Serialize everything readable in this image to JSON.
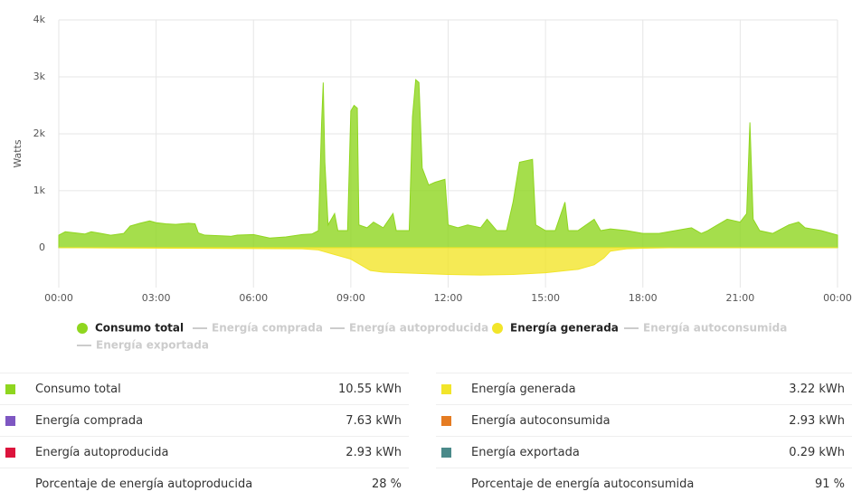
{
  "chart_data": {
    "type": "area",
    "ylabel": "Watts",
    "xlim": [
      0,
      24
    ],
    "xticks": [
      {
        "value": 0,
        "label": "00:00"
      },
      {
        "value": 3,
        "label": "03:00"
      },
      {
        "value": 6,
        "label": "06:00"
      },
      {
        "value": 9,
        "label": "09:00"
      },
      {
        "value": 12,
        "label": "12:00"
      },
      {
        "value": 15,
        "label": "15:00"
      },
      {
        "value": 18,
        "label": "18:00"
      },
      {
        "value": 21,
        "label": "21:00"
      },
      {
        "value": 24,
        "label": "00:00"
      }
    ],
    "ylim": [
      -700,
      4000
    ],
    "yticks": [
      0,
      {
        "value": 1000,
        "label": "1k"
      },
      {
        "value": 2000,
        "label": "2k"
      },
      {
        "value": 3000,
        "label": "3k"
      },
      {
        "value": 4000,
        "label": "4k"
      }
    ],
    "grid": true,
    "series": [
      {
        "name": "Consumo total",
        "color": "#8fd61f",
        "x": [
          0,
          0.2,
          0.5,
          0.8,
          1.0,
          1.3,
          1.6,
          2.0,
          2.2,
          2.5,
          2.8,
          3.0,
          3.3,
          3.6,
          4.0,
          4.2,
          4.3,
          4.5,
          5.0,
          5.3,
          5.5,
          6.0,
          6.5,
          7.0,
          7.5,
          7.8,
          8.0,
          8.1,
          8.15,
          8.2,
          8.3,
          8.5,
          8.6,
          8.9,
          9.0,
          9.1,
          9.2,
          9.25,
          9.5,
          9.7,
          10.0,
          10.3,
          10.4,
          10.8,
          10.9,
          11.0,
          11.1,
          11.2,
          11.4,
          11.6,
          11.9,
          12.0,
          12.3,
          12.6,
          13.0,
          13.2,
          13.5,
          13.8,
          14.0,
          14.2,
          14.6,
          14.7,
          15.0,
          15.3,
          15.6,
          15.7,
          16.0,
          16.5,
          16.7,
          17.0,
          17.5,
          18.0,
          18.5,
          19.0,
          19.5,
          19.8,
          20.0,
          20.3,
          20.6,
          21.0,
          21.2,
          21.3,
          21.4,
          21.6,
          22.0,
          22.5,
          22.8,
          23.0,
          23.5,
          24.0
        ],
        "values": [
          220,
          280,
          260,
          240,
          280,
          250,
          220,
          250,
          380,
          430,
          470,
          440,
          420,
          410,
          430,
          420,
          260,
          220,
          210,
          200,
          220,
          230,
          170,
          190,
          230,
          240,
          300,
          2200,
          2900,
          1500,
          400,
          600,
          300,
          300,
          2400,
          2500,
          2450,
          400,
          350,
          450,
          350,
          600,
          300,
          300,
          2300,
          2950,
          2900,
          1400,
          1100,
          1150,
          1200,
          400,
          350,
          400,
          350,
          500,
          300,
          300,
          800,
          1500,
          1550,
          400,
          300,
          300,
          800,
          300,
          300,
          500,
          300,
          330,
          300,
          250,
          250,
          300,
          350,
          250,
          300,
          400,
          500,
          450,
          600,
          2200,
          500,
          300,
          250,
          400,
          450,
          350,
          300,
          220
        ]
      },
      {
        "name": "Energía generada",
        "color": "#f2e52a",
        "x": [
          0,
          7.5,
          8.0,
          8.5,
          9.0,
          9.3,
          9.6,
          10.0,
          11.0,
          12.0,
          13.0,
          14.0,
          15.0,
          16.0,
          16.5,
          16.8,
          17.0,
          17.5,
          18.0,
          19.0,
          24.0
        ],
        "values": [
          0,
          -20,
          -40,
          -120,
          -200,
          -300,
          -400,
          -430,
          -450,
          -470,
          -480,
          -470,
          -440,
          -380,
          -300,
          -180,
          -60,
          -20,
          -10,
          0,
          0
        ]
      }
    ],
    "hidden_series": [
      "Energía comprada",
      "Energía autoproducida",
      "Energía autoconsumida",
      "Energía exportada"
    ]
  },
  "tables": {
    "left": [
      {
        "color": "#8fd61f",
        "label": "Consumo total",
        "value": "10.55 kWh"
      },
      {
        "color": "#7e57c2",
        "label": "Energía comprada",
        "value": "7.63 kWh"
      },
      {
        "color": "#dc143c",
        "label": "Energía autoproducida",
        "value": "2.93 kWh"
      },
      {
        "label": "Porcentaje de energía autoproducida",
        "value": "28 %"
      }
    ],
    "right": [
      {
        "color": "#f2e52a",
        "label": "Energía generada",
        "value": "3.22 kWh"
      },
      {
        "color": "#e57c22",
        "label": "Energía autoconsumida",
        "value": "2.93 kWh"
      },
      {
        "color": "#4a8a8a",
        "label": "Energía exportada",
        "value": "0.29 kWh"
      },
      {
        "label": "Porcentaje de energía autoconsumida",
        "value": "91 %"
      }
    ]
  }
}
